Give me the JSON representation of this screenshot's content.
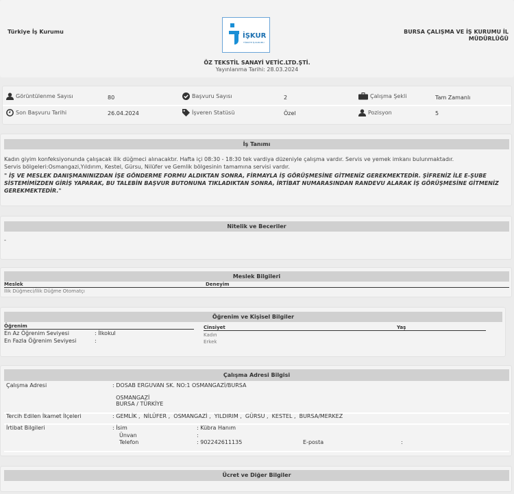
{
  "header": {
    "org_left": "Türkiye İş Kurumu",
    "org_right_line1": "BURSA ÇALIŞMA VE İŞ KURUMU İL",
    "org_right_line2": "MÜDÜRLÜĞÜ",
    "logo_text": "İŞKUR",
    "logo_sub": "TÜRKİYE İŞ KURUMU",
    "company": "ÖZ TEKSTİL SANAYİ VETİC.LTD.ŞTİ.",
    "published": "Yayınlanma Tarihi: 28.03.2024",
    "brand_color": "#1a8fd6"
  },
  "stats": [
    {
      "icon": "user-icon",
      "label": "Görüntülenme Sayısı",
      "value": "80"
    },
    {
      "icon": "check-circle-icon",
      "label": "Başvuru Sayısı",
      "value": "2"
    },
    {
      "icon": "briefcase-icon",
      "label": "Çalışma Şekli",
      "value": "Tam Zamanlı"
    },
    {
      "icon": "clock-icon",
      "label": "Son Başvuru Tarihi",
      "value": "26.04.2024"
    },
    {
      "icon": "tag-icon",
      "label": "İşveren Statüsü",
      "value": "Özel"
    },
    {
      "icon": "user-icon",
      "label": "Pozisyon",
      "value": "5"
    }
  ],
  "job": {
    "title": "İş Tanımı",
    "desc": "Kadın giyim konfeksiyonunda çalışacak ilik düğmeci alınacaktır. Hafta içi 08:30 - 18:30 tek vardiya düzeniyle çalışma vardır. Servis ve yemek imkanı bulunmaktadır. Servis bölgeleri:Osmangazi,Yıldırım, Kestel, Gürsu, Nilüfer ve Gemlik bölgesinin tamamına servisi vardır.",
    "note": "\" İŞ VE MESLEK DANIŞMANINIZDAN  İŞE GÖNDERME FORMU  ALDIKTAN SONRA, FİRMAYLA İŞ GÖRÜŞMESİNE GİTMENİZ GEREKMEKTEDİR.  ŞİFRENİZ İLE E-ŞUBE SİSTEMİMİZDEN  GİRİŞ YAPARAK,  BU TALEBİN BAŞVUR BUTONUNA  TIKLADIKTAN  SONRA,  İRTİBAT  NUMARASINDAN  RANDEVU ALARAK İŞ GÖRÜŞMESİNE GİTMENİZ GEREKMEKTEDİR.\""
  },
  "skills": {
    "title": "Nitelik ve Beceriler",
    "value": "-"
  },
  "occupation": {
    "title": "Meslek Bilgileri",
    "col1": "Meslek",
    "col2": "Deneyim",
    "value": "İlik Düğmeci/İlik Düğme Otomatçı"
  },
  "education": {
    "title": "Öğrenim ve Kişisel Bilgiler",
    "col": "Öğrenim",
    "min_label": "En Az Öğrenim Seviyesi",
    "min_value": "İlkokul",
    "max_label": "En Fazla Öğrenim Seviyesi",
    "max_value": "",
    "gender_col": "Cinsiyet",
    "age_col": "Yaş",
    "genders": [
      "Kadın",
      "Erkek"
    ]
  },
  "address": {
    "title": "Çalışma Adresi Bilgisi",
    "addr_label": "Çalışma Adresi",
    "addr_line1": "DOSAB ERGUVAN SK. NO:1 OSMANGAZİ/BURSA",
    "addr_line2": "OSMANGAZİ",
    "addr_line3": "BURSA / TÜRKİYE",
    "districts_label": "Tercih Edilen İkamet İlçeleri",
    "districts": "GEMLİK ,  NİLÜFER ,  OSMANGAZİ ,  YILDIRIM ,  GÜRSU ,  KESTEL ,  BURSA/MERKEZ",
    "contact_label": "İrtibat Bilgileri",
    "name_label": "İsim",
    "name_value": "Kübra Hanım",
    "title_label": "Ünvan",
    "title_value": "",
    "phone_label": "Telefon",
    "phone_value": "902242611135",
    "email_label": "E-posta",
    "email_value": ""
  },
  "salary": {
    "title": "Ücret ve Diğer Bilgiler"
  }
}
